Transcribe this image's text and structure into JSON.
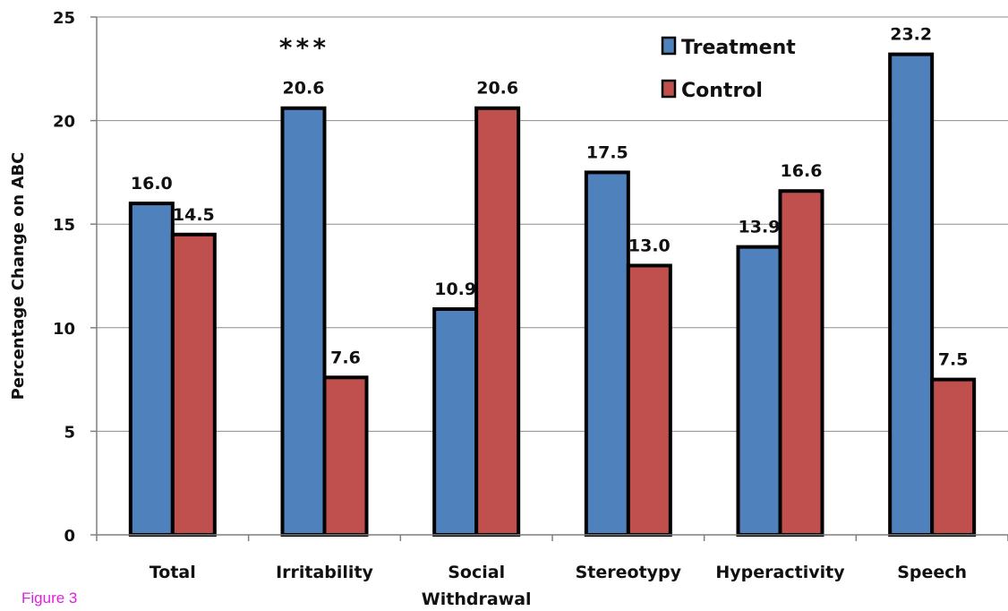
{
  "figure_label": "Figure 3",
  "colors": {
    "treatment": "#4f81bd",
    "control": "#c0504d",
    "outline": "#000000",
    "grid": "#8c8c8c"
  },
  "chart_data": {
    "type": "bar",
    "title": "",
    "xlabel": "",
    "ylabel": "Percentage Change on ABC",
    "ylim": [
      0,
      25
    ],
    "yticks": [
      0,
      5,
      10,
      15,
      20,
      25
    ],
    "grid": true,
    "legend_position": "top-right",
    "categories": [
      "Total",
      "Irritability",
      "Social\nWithdrawal",
      "Stereotypy",
      "Hyperactivity",
      "Speech"
    ],
    "series": [
      {
        "name": "Treatment",
        "values": [
          16.0,
          20.6,
          10.9,
          17.5,
          13.9,
          23.2
        ],
        "labels": [
          "16.0",
          "20.6",
          "10.9",
          "17.5",
          "13.9",
          "23.2"
        ]
      },
      {
        "name": "Control",
        "values": [
          14.5,
          7.6,
          20.6,
          13.0,
          16.6,
          7.5
        ],
        "labels": [
          "14.5",
          "7.6",
          "20.6",
          "13.0",
          "16.6",
          "7.5"
        ]
      }
    ],
    "annotations": [
      {
        "text": "***",
        "category": "Irritability"
      }
    ]
  }
}
